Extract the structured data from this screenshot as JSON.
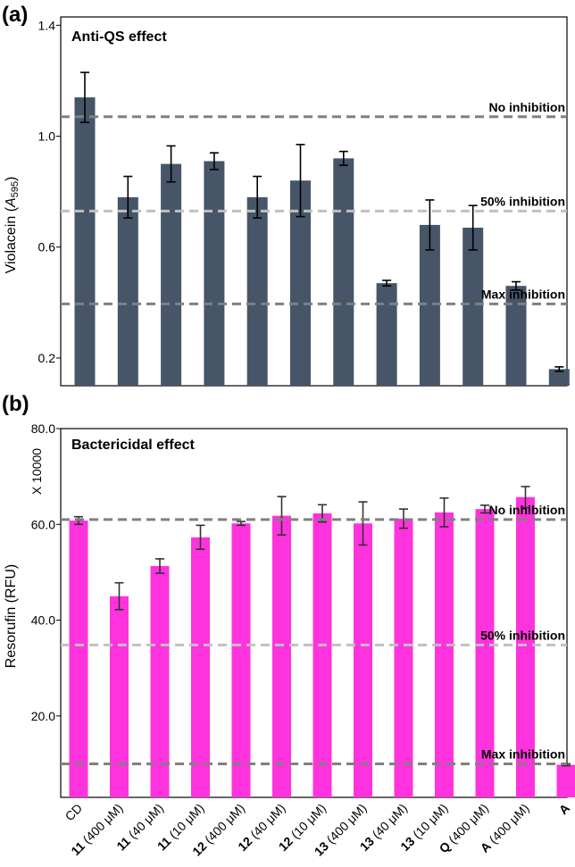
{
  "chart_data": [
    {
      "panel": "(a)",
      "type": "bar",
      "title": "Anti-QS effect",
      "ylabel_prefix": "Violacein (",
      "ylabel_italic": "A",
      "ylabel_sub": "595",
      "ylabel_suffix": ")",
      "ylim": [
        0.1,
        1.43
      ],
      "yticks": [
        0.2,
        0.6,
        1.0,
        1.4
      ],
      "ytick_labels": [
        "0.2",
        "0.6",
        "1.0",
        "1.4"
      ],
      "bar_color": "#465568",
      "values": [
        1.14,
        0.78,
        0.9,
        0.91,
        0.78,
        0.84,
        0.92,
        0.47,
        0.68,
        0.67,
        0.46,
        0.16
      ],
      "errors": [
        0.09,
        0.075,
        0.065,
        0.03,
        0.075,
        0.13,
        0.025,
        0.01,
        0.09,
        0.08,
        0.015,
        0.008
      ],
      "reference_lines": [
        {
          "label": "No inhibition",
          "value": 1.07,
          "color": "#808080"
        },
        {
          "label": "50% inhibition",
          "value": 0.73,
          "color": "#c0c0c0"
        },
        {
          "label": "Max inhibition",
          "value": 0.395,
          "color": "#808080"
        }
      ]
    },
    {
      "panel": "(b)",
      "type": "bar",
      "title": "Bactericidal effect",
      "ylabel": "Resorufin (RFU)",
      "scale_label": "X 10000",
      "ylim": [
        3.0,
        80.0
      ],
      "yticks": [
        20.0,
        40.0,
        60.0,
        80.0
      ],
      "ytick_labels": [
        "20.0",
        "40.0",
        "60.0",
        "80.0"
      ],
      "bar_color": "#ff33dd",
      "values": [
        60.8,
        45.0,
        51.3,
        57.3,
        60.2,
        61.8,
        62.3,
        60.2,
        61.2,
        62.5,
        63.2,
        65.7,
        9.8
      ],
      "errors": [
        0.8,
        2.8,
        1.5,
        2.5,
        0.4,
        4.0,
        1.8,
        4.5,
        2.0,
        3.0,
        0.8,
        2.2,
        0.2
      ],
      "reference_lines": [
        {
          "label": "No inhibition",
          "value": 61.0,
          "color": "#808080"
        },
        {
          "label": "50% inhibition",
          "value": 34.8,
          "color": "#c0c0c0"
        },
        {
          "label": "Max inhibition",
          "value": 10.0,
          "color": "#808080"
        }
      ]
    }
  ],
  "categories": [
    {
      "id": "CD",
      "conc": ""
    },
    {
      "id": "11",
      "conc": " (400 μM)"
    },
    {
      "id": "11",
      "conc": " (40 μM)"
    },
    {
      "id": "11",
      "conc": " (10 μM)"
    },
    {
      "id": "12",
      "conc": " (400 μM)"
    },
    {
      "id": "12",
      "conc": " (40 μM)"
    },
    {
      "id": "12",
      "conc": " (10 μM)"
    },
    {
      "id": "13",
      "conc": " (400 μM)"
    },
    {
      "id": "13",
      "conc": " (40 μM)"
    },
    {
      "id": "13",
      "conc": " (10 μM)"
    },
    {
      "id": "Q",
      "conc": " (400 μM)"
    },
    {
      "id": "A",
      "conc": " (400 μM)"
    },
    {
      "id": "A",
      "conc": ""
    }
  ],
  "category_bold": [
    false,
    true,
    true,
    true,
    true,
    true,
    true,
    true,
    true,
    true,
    true,
    true,
    true
  ]
}
